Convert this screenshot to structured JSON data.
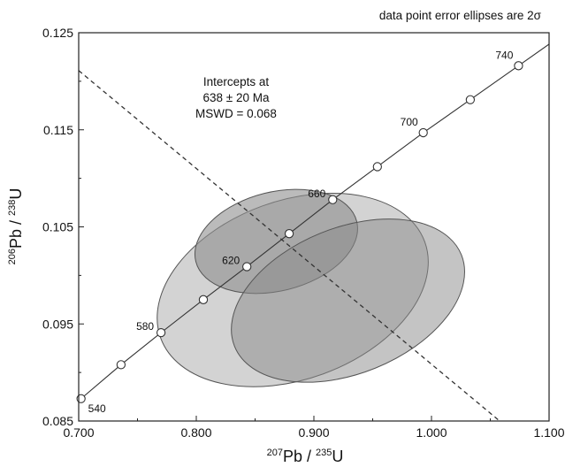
{
  "chart_data": {
    "type": "scatter",
    "title": "",
    "note": "data point error ellipses are 2σ",
    "xlabel": {
      "sup1": "207",
      "base1": "Pb / ",
      "sup2": "235",
      "base2": "U"
    },
    "ylabel": {
      "sup1": "206",
      "base1": "Pb / ",
      "sup2": "238",
      "base2": "U"
    },
    "xlim": [
      0.7,
      1.1
    ],
    "ylim": [
      0.085,
      0.125
    ],
    "x_ticks": [
      0.7,
      0.8,
      0.9,
      1.0,
      1.1
    ],
    "x_tick_labels": [
      "0.700",
      "0.800",
      "0.900",
      "1.000",
      "1.100"
    ],
    "y_ticks": [
      0.085,
      0.095,
      0.105,
      0.115,
      0.125
    ],
    "y_tick_labels": [
      "0.085",
      "0.095",
      "0.105",
      "0.115",
      "0.125"
    ],
    "intercept_text": [
      "Intercepts at",
      "638 ± 20 Ma",
      "MSWD = 0.068"
    ],
    "concordia": {
      "points": [
        {
          "x": 0.702,
          "y": 0.0873
        },
        {
          "x": 0.736,
          "y": 0.0908
        },
        {
          "x": 0.77,
          "y": 0.0941
        },
        {
          "x": 0.806,
          "y": 0.0975
        },
        {
          "x": 0.843,
          "y": 0.1009
        },
        {
          "x": 0.879,
          "y": 0.1043
        },
        {
          "x": 0.916,
          "y": 0.1078
        },
        {
          "x": 0.954,
          "y": 0.1112
        },
        {
          "x": 0.993,
          "y": 0.1147
        },
        {
          "x": 1.033,
          "y": 0.1181
        },
        {
          "x": 1.074,
          "y": 0.1216
        }
      ],
      "age_labels": [
        {
          "text": "540",
          "x": 0.702,
          "y": 0.0873,
          "place": "below-right"
        },
        {
          "text": "580",
          "x": 0.77,
          "y": 0.0941,
          "place": "left"
        },
        {
          "text": "620",
          "x": 0.843,
          "y": 0.1009,
          "place": "left"
        },
        {
          "text": "660",
          "x": 0.916,
          "y": 0.1078,
          "place": "left"
        },
        {
          "text": "700",
          "x": 0.993,
          "y": 0.1147,
          "place": "above-left"
        },
        {
          "text": "740",
          "x": 1.074,
          "y": 0.1216,
          "place": "above-left"
        }
      ]
    },
    "discordia": {
      "x1": 0.7,
      "y1": 0.1211,
      "x2": 1.058,
      "y2": 0.085
    },
    "ellipses": [
      {
        "name": "",
        "cx": 0.882,
        "cy": 0.0985,
        "rx": 0.1195,
        "ry": 0.0092,
        "angle_deg": -20,
        "fill": "#c4c4c4",
        "opacity": 0.75
      },
      {
        "name": "",
        "cx": 0.868,
        "cy": 0.1035,
        "rx": 0.0705,
        "ry": 0.0051,
        "angle_deg": -14,
        "fill": "#8e8e8e",
        "opacity": 0.6
      },
      {
        "name": "",
        "cx": 0.929,
        "cy": 0.0974,
        "rx": 0.104,
        "ry": 0.0075,
        "angle_deg": -22,
        "fill": "#8a8a8a",
        "opacity": 0.5
      }
    ],
    "grid": false,
    "legend": "none"
  }
}
